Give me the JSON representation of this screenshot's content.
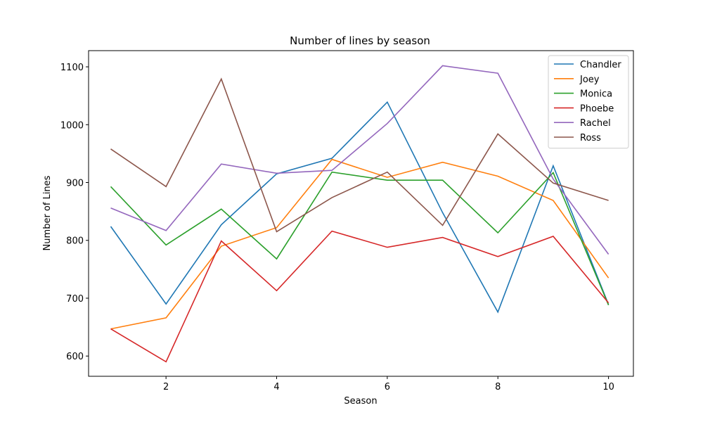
{
  "chart_data": {
    "type": "line",
    "title": "Number of lines by season",
    "xlabel": "Season",
    "ylabel": "Number of Lines",
    "xlim": [
      0.6,
      10.45
    ],
    "ylim": [
      565,
      1128
    ],
    "x_ticks": [
      2,
      4,
      6,
      8,
      10
    ],
    "y_ticks": [
      600,
      700,
      800,
      900,
      1000,
      1100
    ],
    "grid": false,
    "legend_position": "top-right",
    "x": [
      1,
      2,
      3,
      4,
      5,
      6,
      7,
      8,
      9,
      10
    ],
    "series": [
      {
        "name": "Chandler",
        "color": "#1f77b4",
        "values": [
          824,
          690,
          827,
          915,
          942,
          1039,
          848,
          676,
          929,
          689
        ]
      },
      {
        "name": "Joey",
        "color": "#ff7f0e",
        "values": [
          647,
          666,
          790,
          822,
          940,
          909,
          935,
          911,
          869,
          735
        ]
      },
      {
        "name": "Monica",
        "color": "#2ca02c",
        "values": [
          893,
          792,
          854,
          768,
          918,
          904,
          904,
          813,
          917,
          688
        ]
      },
      {
        "name": "Phoebe",
        "color": "#d62728",
        "values": [
          647,
          590,
          799,
          713,
          816,
          788,
          805,
          772,
          807,
          692
        ]
      },
      {
        "name": "Rachel",
        "color": "#9467bd",
        "values": [
          856,
          817,
          932,
          916,
          921,
          1002,
          1102,
          1089,
          906,
          776
        ]
      },
      {
        "name": "Ross",
        "color": "#8c564b",
        "values": [
          958,
          893,
          1079,
          815,
          874,
          918,
          826,
          984,
          899,
          869
        ]
      }
    ]
  }
}
